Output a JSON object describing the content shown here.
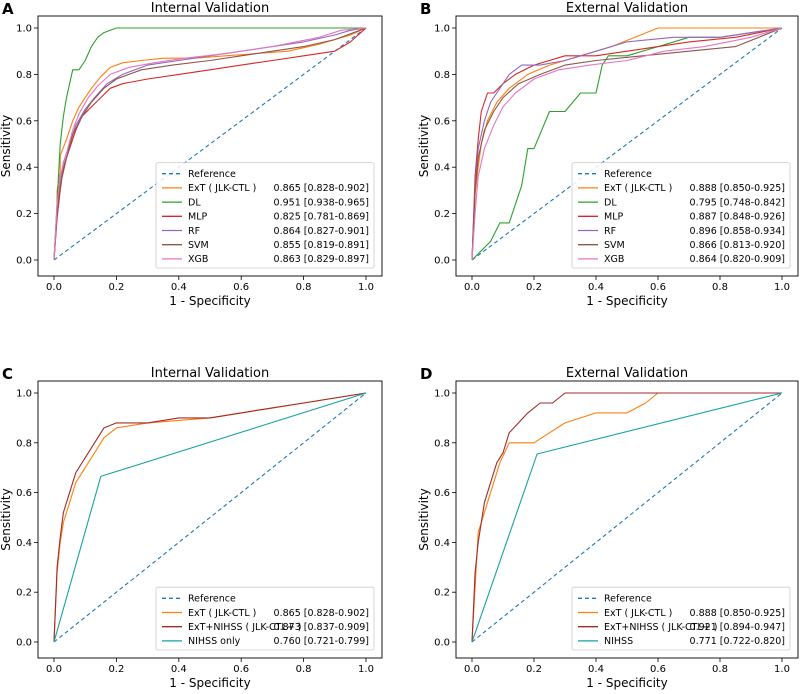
{
  "chart_data": [
    {
      "panel": "A",
      "type": "line",
      "title": "Internal Validation",
      "xlabel": "1 - Specificity",
      "ylabel": "Sensitivity",
      "xlim": [
        0,
        1
      ],
      "ylim": [
        0,
        1
      ],
      "ticks": [
        "0.0",
        "0.2",
        "0.4",
        "0.6",
        "0.8",
        "1.0"
      ],
      "legend_position": "lower-right",
      "series": [
        {
          "name": "Reference",
          "auc": "",
          "color": "#1f77b4",
          "dashed": true,
          "x": [
            0,
            1
          ],
          "y": [
            0,
            1
          ]
        },
        {
          "name": "ExT ( JLK-CTL )",
          "auc": "0.865 [0.828-0.902]",
          "color": "#ff7f0e",
          "x": [
            0,
            0.01,
            0.01,
            0.02,
            0.02,
            0.04,
            0.06,
            0.08,
            0.1,
            0.12,
            0.15,
            0.18,
            0.22,
            0.28,
            0.35,
            0.45,
            0.55,
            0.65,
            0.75,
            0.85,
            0.95,
            1
          ],
          "y": [
            0,
            0.2,
            0.3,
            0.38,
            0.45,
            0.52,
            0.6,
            0.66,
            0.7,
            0.74,
            0.79,
            0.83,
            0.85,
            0.86,
            0.87,
            0.87,
            0.88,
            0.89,
            0.9,
            0.93,
            0.97,
            1
          ]
        },
        {
          "name": "DL",
          "auc": "0.951 [0.938-0.965]",
          "color": "#2ca02c",
          "x": [
            0,
            0.01,
            0.02,
            0.03,
            0.04,
            0.05,
            0.06,
            0.08,
            0.1,
            0.12,
            0.14,
            0.16,
            0.2,
            0.3,
            0.5,
            0.7,
            0.9,
            1
          ],
          "y": [
            0,
            0.25,
            0.5,
            0.62,
            0.7,
            0.76,
            0.82,
            0.82,
            0.86,
            0.92,
            0.96,
            0.98,
            1,
            1,
            1,
            1,
            1,
            1
          ]
        },
        {
          "name": "MLP",
          "auc": "0.825 [0.781-0.869]",
          "color": "#d62728",
          "x": [
            0,
            0.01,
            0.02,
            0.03,
            0.05,
            0.07,
            0.09,
            0.12,
            0.15,
            0.18,
            0.22,
            0.3,
            0.4,
            0.5,
            0.6,
            0.7,
            0.8,
            0.9,
            0.95,
            1
          ],
          "y": [
            0,
            0.18,
            0.3,
            0.4,
            0.48,
            0.56,
            0.62,
            0.66,
            0.7,
            0.74,
            0.76,
            0.78,
            0.8,
            0.82,
            0.84,
            0.86,
            0.88,
            0.9,
            0.94,
            1
          ]
        },
        {
          "name": "RF",
          "auc": "0.864 [0.827-0.901]",
          "color": "#9467bd",
          "x": [
            0,
            0.01,
            0.02,
            0.03,
            0.05,
            0.07,
            0.1,
            0.13,
            0.17,
            0.22,
            0.3,
            0.4,
            0.5,
            0.6,
            0.7,
            0.8,
            0.9,
            0.95,
            1
          ],
          "y": [
            0,
            0.22,
            0.34,
            0.42,
            0.5,
            0.58,
            0.65,
            0.7,
            0.76,
            0.8,
            0.84,
            0.86,
            0.88,
            0.9,
            0.92,
            0.94,
            0.97,
            0.99,
            1
          ]
        },
        {
          "name": "SVM",
          "auc": "0.855 [0.819-0.891]",
          "color": "#8c564b",
          "x": [
            0,
            0.01,
            0.02,
            0.04,
            0.06,
            0.09,
            0.12,
            0.16,
            0.2,
            0.28,
            0.38,
            0.5,
            0.6,
            0.7,
            0.8,
            0.9,
            0.96,
            1
          ],
          "y": [
            0,
            0.2,
            0.32,
            0.44,
            0.54,
            0.62,
            0.68,
            0.74,
            0.78,
            0.82,
            0.84,
            0.86,
            0.88,
            0.9,
            0.92,
            0.95,
            0.98,
            1
          ]
        },
        {
          "name": "XGB",
          "auc": "0.863 [0.829-0.897]",
          "color": "#e377c2",
          "x": [
            0,
            0.01,
            0.02,
            0.04,
            0.06,
            0.08,
            0.11,
            0.14,
            0.18,
            0.24,
            0.32,
            0.42,
            0.55,
            0.7,
            0.85,
            0.92,
            1
          ],
          "y": [
            0,
            0.24,
            0.36,
            0.46,
            0.56,
            0.63,
            0.7,
            0.75,
            0.8,
            0.83,
            0.85,
            0.87,
            0.89,
            0.92,
            0.96,
            0.99,
            1
          ]
        }
      ]
    },
    {
      "panel": "B",
      "type": "line",
      "title": "External Validation",
      "xlabel": "1 - Specificity",
      "ylabel": "Sensitivity",
      "xlim": [
        0,
        1
      ],
      "ylim": [
        0,
        1
      ],
      "ticks": [
        "0.0",
        "0.2",
        "0.4",
        "0.6",
        "0.8",
        "1.0"
      ],
      "legend_position": "lower-right",
      "series": [
        {
          "name": "Reference",
          "auc": "",
          "color": "#1f77b4",
          "dashed": true,
          "x": [
            0,
            1
          ],
          "y": [
            0,
            1
          ]
        },
        {
          "name": "ExT ( JLK-CTL )",
          "auc": "0.888 [0.850-0.925]",
          "color": "#ff7f0e",
          "x": [
            0,
            0.01,
            0.02,
            0.03,
            0.05,
            0.08,
            0.12,
            0.18,
            0.25,
            0.35,
            0.45,
            0.6,
            0.7,
            0.8,
            0.9,
            1
          ],
          "y": [
            0,
            0.28,
            0.4,
            0.5,
            0.6,
            0.68,
            0.74,
            0.8,
            0.84,
            0.88,
            0.92,
            1,
            1,
            1,
            1,
            1
          ]
        },
        {
          "name": "DL",
          "auc": "0.795 [0.748-0.842]",
          "color": "#2ca02c",
          "x": [
            0,
            0.03,
            0.06,
            0.09,
            0.12,
            0.14,
            0.16,
            0.18,
            0.2,
            0.25,
            0.3,
            0.35,
            0.4,
            0.42,
            0.44,
            0.5,
            0.6,
            0.7,
            0.8,
            1
          ],
          "y": [
            0,
            0.04,
            0.08,
            0.16,
            0.16,
            0.24,
            0.32,
            0.48,
            0.48,
            0.64,
            0.64,
            0.72,
            0.72,
            0.84,
            0.88,
            0.88,
            0.92,
            0.96,
            0.96,
            1
          ]
        },
        {
          "name": "MLP",
          "auc": "0.887 [0.848-0.926]",
          "color": "#d62728",
          "x": [
            0,
            0.01,
            0.02,
            0.03,
            0.05,
            0.07,
            0.1,
            0.14,
            0.2,
            0.3,
            0.4,
            0.5,
            0.6,
            0.7,
            0.85,
            1
          ],
          "y": [
            0,
            0.36,
            0.52,
            0.64,
            0.72,
            0.72,
            0.76,
            0.8,
            0.84,
            0.88,
            0.88,
            0.9,
            0.92,
            0.94,
            0.96,
            1
          ]
        },
        {
          "name": "RF",
          "auc": "0.896 [0.858-0.934]",
          "color": "#9467bd",
          "x": [
            0,
            0.01,
            0.02,
            0.04,
            0.06,
            0.09,
            0.12,
            0.16,
            0.22,
            0.3,
            0.4,
            0.5,
            0.65,
            0.8,
            1
          ],
          "y": [
            0,
            0.32,
            0.48,
            0.6,
            0.68,
            0.74,
            0.8,
            0.84,
            0.84,
            0.86,
            0.9,
            0.94,
            0.96,
            0.96,
            1
          ]
        },
        {
          "name": "SVM",
          "auc": "0.866 [0.813-0.920]",
          "color": "#8c564b",
          "x": [
            0,
            0.01,
            0.02,
            0.04,
            0.07,
            0.1,
            0.15,
            0.22,
            0.3,
            0.4,
            0.55,
            0.7,
            0.85,
            1
          ],
          "y": [
            0,
            0.3,
            0.44,
            0.56,
            0.64,
            0.7,
            0.76,
            0.8,
            0.84,
            0.86,
            0.88,
            0.9,
            0.92,
            1
          ]
        },
        {
          "name": "XGB",
          "auc": "0.864 [0.820-0.909]",
          "color": "#e377c2",
          "x": [
            0,
            0.01,
            0.02,
            0.04,
            0.07,
            0.1,
            0.14,
            0.2,
            0.28,
            0.38,
            0.5,
            0.62,
            0.75,
            0.9,
            1
          ],
          "y": [
            0,
            0.2,
            0.36,
            0.48,
            0.58,
            0.66,
            0.72,
            0.78,
            0.82,
            0.84,
            0.86,
            0.9,
            0.92,
            0.96,
            1
          ]
        }
      ]
    },
    {
      "panel": "C",
      "type": "line",
      "title": "Internal Validation",
      "xlabel": "1 - Specificity",
      "ylabel": "Sensitivity",
      "xlim": [
        0,
        1
      ],
      "ylim": [
        0,
        1
      ],
      "ticks": [
        "0.0",
        "0.2",
        "0.4",
        "0.6",
        "0.8",
        "1.0"
      ],
      "legend_position": "lower-right",
      "series": [
        {
          "name": "Reference",
          "auc": "",
          "color": "#1f77b4",
          "dashed": true,
          "x": [
            0,
            1
          ],
          "y": [
            0,
            1
          ]
        },
        {
          "name": "ExT ( JLK-CTL )",
          "auc": "0.865 [0.828-0.902]",
          "color": "#ff7f0e",
          "x": [
            0,
            0.01,
            0.02,
            0.03,
            0.05,
            0.07,
            0.1,
            0.13,
            0.16,
            0.2,
            0.3,
            0.4,
            0.5,
            0.6,
            0.7,
            0.8,
            0.9,
            1
          ],
          "y": [
            0,
            0.28,
            0.4,
            0.48,
            0.56,
            0.64,
            0.7,
            0.76,
            0.82,
            0.86,
            0.88,
            0.89,
            0.9,
            0.92,
            0.94,
            0.96,
            0.98,
            1
          ]
        },
        {
          "name": "ExT+NIHSS ( JLK-CTL+ )",
          "auc": "0.873 [0.837-0.909]",
          "color": "#a02c2c",
          "x": [
            0,
            0.01,
            0.02,
            0.03,
            0.05,
            0.07,
            0.1,
            0.13,
            0.16,
            0.2,
            0.3,
            0.4,
            0.5,
            0.6,
            0.7,
            0.8,
            0.9,
            1
          ],
          "y": [
            0,
            0.3,
            0.42,
            0.52,
            0.6,
            0.68,
            0.74,
            0.8,
            0.86,
            0.88,
            0.88,
            0.9,
            0.9,
            0.92,
            0.94,
            0.96,
            0.98,
            1
          ]
        },
        {
          "name": "NIHSS only",
          "auc": "0.760 [0.721-0.799]",
          "color": "#17a2a2",
          "x": [
            0,
            0.15,
            1
          ],
          "y": [
            0,
            0.665,
            1
          ]
        }
      ]
    },
    {
      "panel": "D",
      "type": "line",
      "title": "External Validation",
      "xlabel": "1 - Specificity",
      "ylabel": "Sensitivity",
      "xlim": [
        0,
        1
      ],
      "ylim": [
        0,
        1
      ],
      "ticks": [
        "0.0",
        "0.2",
        "0.4",
        "0.6",
        "0.8",
        "1.0"
      ],
      "legend_position": "lower-right",
      "series": [
        {
          "name": "Reference",
          "auc": "",
          "color": "#1f77b4",
          "dashed": true,
          "x": [
            0,
            1
          ],
          "y": [
            0,
            1
          ]
        },
        {
          "name": "ExT ( JLK-CTL )",
          "auc": "0.888 [0.850-0.925]",
          "color": "#ff7f0e",
          "x": [
            0,
            0.02,
            0.03,
            0.05,
            0.07,
            0.09,
            0.12,
            0.16,
            0.2,
            0.25,
            0.3,
            0.4,
            0.5,
            0.56,
            0.6,
            0.8,
            1
          ],
          "y": [
            0,
            0.44,
            0.48,
            0.56,
            0.64,
            0.72,
            0.8,
            0.8,
            0.8,
            0.84,
            0.88,
            0.92,
            0.92,
            0.96,
            1,
            1,
            1
          ]
        },
        {
          "name": "ExT+NIHSS ( JLK-CTL+ )",
          "auc": "0.921 [0.894-0.947]",
          "color": "#a02c2c",
          "x": [
            0,
            0.01,
            0.02,
            0.04,
            0.06,
            0.08,
            0.1,
            0.12,
            0.15,
            0.18,
            0.22,
            0.26,
            0.3,
            0.32,
            0.5,
            0.7,
            1
          ],
          "y": [
            0,
            0.28,
            0.4,
            0.56,
            0.64,
            0.72,
            0.76,
            0.84,
            0.88,
            0.92,
            0.96,
            0.96,
            1,
            1,
            1,
            1,
            1
          ]
        },
        {
          "name": "NIHSS",
          "auc": "0.771 [0.722-0.820]",
          "color": "#17a2a2",
          "x": [
            0,
            0.21,
            1
          ],
          "y": [
            0,
            0.755,
            1
          ]
        }
      ]
    }
  ]
}
